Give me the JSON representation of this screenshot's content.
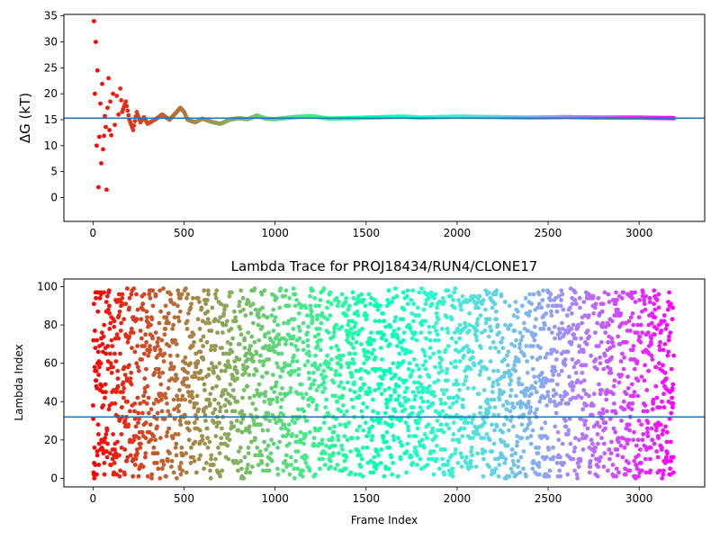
{
  "chart_data": [
    {
      "type": "scatter",
      "title": "",
      "xlabel": "",
      "ylabel": "ΔG (kT)",
      "xlim": [
        -160,
        3360
      ],
      "ylim": [
        -4.6,
        35.3
      ],
      "xticks": [
        "0",
        "500",
        "1000",
        "1500",
        "2000",
        "2500",
        "3000"
      ],
      "yticks": [
        "0",
        "5",
        "10",
        "15",
        "20",
        "25",
        "30",
        "35"
      ],
      "colormap": "rainbow",
      "reference_line": 15.3,
      "reference_line_color": "#1f77b4",
      "series": [
        {
          "x": [
            5,
            10,
            15,
            20,
            25,
            30,
            35,
            40,
            45,
            50,
            55,
            60,
            65,
            70,
            75,
            80,
            85,
            90,
            95,
            100,
            110,
            120,
            130,
            140,
            150,
            160,
            180,
            200,
            220,
            240,
            260,
            280,
            300,
            340,
            380,
            420,
            460,
            480,
            500,
            520,
            560,
            600,
            650,
            700,
            750,
            800,
            850,
            900,
            950,
            1000,
            1100,
            1200,
            1300,
            1400,
            1500,
            1600,
            1700,
            1800,
            1900,
            2000,
            2200,
            2400,
            2600,
            2800,
            3000,
            3190
          ],
          "y": [
            34,
            20,
            30,
            10,
            24.5,
            2,
            11.7,
            18.1,
            6.6,
            21.9,
            9.3,
            11.9,
            15.7,
            13.6,
            1.5,
            17.3,
            23,
            13,
            18.5,
            12,
            20,
            14,
            19.6,
            16,
            21,
            16.5,
            18.5,
            15,
            13,
            16.5,
            14.5,
            15.5,
            14.2,
            15,
            16,
            15,
            16.5,
            17.3,
            16.5,
            15,
            14.5,
            15.2,
            14.6,
            14.2,
            15,
            15.3,
            15.1,
            15.8,
            15.2,
            15.1,
            15.5,
            15.7,
            15.2,
            15.3,
            15.4,
            15.5,
            15.6,
            15.4,
            15.5,
            15.6,
            15.5,
            15.4,
            15.5,
            15.4,
            15.4,
            15.3
          ]
        }
      ]
    },
    {
      "type": "scatter",
      "title": "Lambda Trace for PROJ18434/RUN4/CLONE17",
      "xlabel": "Frame Index",
      "ylabel": "Lambda Index",
      "xlim": [
        -160,
        3360
      ],
      "ylim": [
        -4.5,
        104
      ],
      "xticks": [
        "0",
        "500",
        "1000",
        "1500",
        "2000",
        "2500",
        "3000"
      ],
      "yticks": [
        "0",
        "20",
        "40",
        "60",
        "80",
        "100"
      ],
      "colormap": "rainbow",
      "reference_line": 32,
      "reference_line_color": "#1f77b4",
      "frame_range": [
        0,
        3190
      ],
      "lambda_range": [
        0,
        99
      ],
      "frame_count": 3190
    }
  ]
}
